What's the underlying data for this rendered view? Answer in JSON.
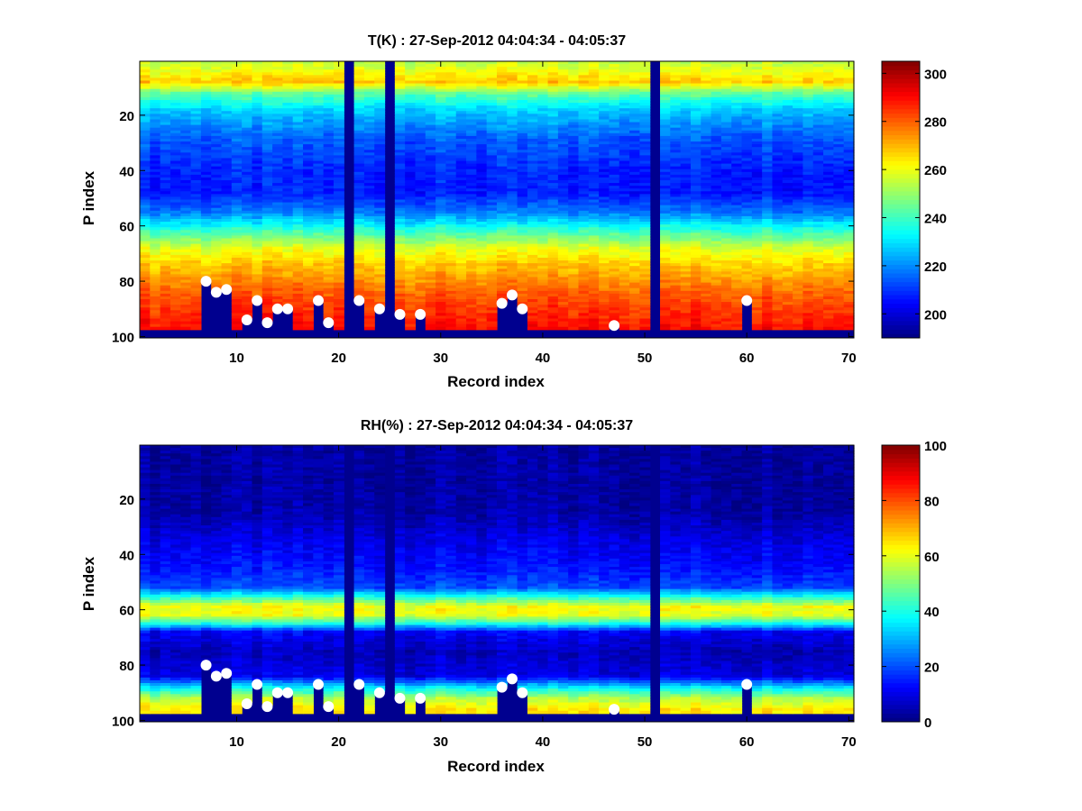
{
  "chart_data": [
    {
      "type": "heatmap",
      "title": "T(K) : 27-Sep-2012 04:04:34 - 04:05:37",
      "xlabel": "Record index",
      "ylabel": "P index",
      "xlim": [
        0.5,
        70.5
      ],
      "ylim": [
        0.5,
        100.5
      ],
      "y_reversed": true,
      "xticks": [
        10,
        20,
        30,
        40,
        50,
        60,
        70
      ],
      "yticks": [
        20,
        40,
        60,
        80,
        100
      ],
      "colorbar": {
        "min": 190,
        "max": 305,
        "ticks": [
          200,
          220,
          240,
          260,
          280,
          300
        ],
        "colormap": "jet"
      },
      "missing_records": [
        21,
        25,
        51
      ],
      "profile": [
        {
          "p": 1,
          "value": 255
        },
        {
          "p": 5,
          "value": 262
        },
        {
          "p": 8,
          "value": 268
        },
        {
          "p": 12,
          "value": 245
        },
        {
          "p": 18,
          "value": 228
        },
        {
          "p": 28,
          "value": 215
        },
        {
          "p": 40,
          "value": 208
        },
        {
          "p": 48,
          "value": 207
        },
        {
          "p": 55,
          "value": 218
        },
        {
          "p": 62,
          "value": 240
        },
        {
          "p": 68,
          "value": 258
        },
        {
          "p": 74,
          "value": 268
        },
        {
          "p": 80,
          "value": 275
        },
        {
          "p": 86,
          "value": 282
        },
        {
          "p": 92,
          "value": 286
        },
        {
          "p": 97,
          "value": 290
        }
      ],
      "surface_points": [
        {
          "record": 7,
          "p": 80
        },
        {
          "record": 8,
          "p": 84
        },
        {
          "record": 9,
          "p": 83
        },
        {
          "record": 11,
          "p": 94
        },
        {
          "record": 12,
          "p": 87
        },
        {
          "record": 13,
          "p": 95
        },
        {
          "record": 14,
          "p": 90
        },
        {
          "record": 15,
          "p": 90
        },
        {
          "record": 18,
          "p": 87
        },
        {
          "record": 19,
          "p": 95
        },
        {
          "record": 22,
          "p": 87
        },
        {
          "record": 24,
          "p": 90
        },
        {
          "record": 26,
          "p": 92
        },
        {
          "record": 28,
          "p": 92
        },
        {
          "record": 36,
          "p": 88
        },
        {
          "record": 37,
          "p": 85
        },
        {
          "record": 38,
          "p": 90
        },
        {
          "record": 47,
          "p": 96
        },
        {
          "record": 60,
          "p": 87
        }
      ]
    },
    {
      "type": "heatmap",
      "title": "RH(%) : 27-Sep-2012 04:04:34 - 04:05:37",
      "xlabel": "Record index",
      "ylabel": "P index",
      "xlim": [
        0.5,
        70.5
      ],
      "ylim": [
        0.5,
        100.5
      ],
      "y_reversed": true,
      "xticks": [
        10,
        20,
        30,
        40,
        50,
        60,
        70
      ],
      "yticks": [
        20,
        40,
        60,
        80,
        100
      ],
      "colorbar": {
        "min": 0,
        "max": 100,
        "ticks": [
          0,
          20,
          40,
          60,
          80,
          100
        ],
        "colormap": "jet"
      },
      "missing_records": [
        21,
        25,
        51
      ],
      "profile": [
        {
          "p": 1,
          "value": 3
        },
        {
          "p": 25,
          "value": 4
        },
        {
          "p": 35,
          "value": 10
        },
        {
          "p": 45,
          "value": 14
        },
        {
          "p": 52,
          "value": 20
        },
        {
          "p": 56,
          "value": 45
        },
        {
          "p": 59,
          "value": 62
        },
        {
          "p": 62,
          "value": 60
        },
        {
          "p": 65,
          "value": 40
        },
        {
          "p": 68,
          "value": 12
        },
        {
          "p": 75,
          "value": 6
        },
        {
          "p": 84,
          "value": 10
        },
        {
          "p": 88,
          "value": 35
        },
        {
          "p": 92,
          "value": 55
        },
        {
          "p": 96,
          "value": 65
        }
      ],
      "surface_points": [
        {
          "record": 7,
          "p": 80
        },
        {
          "record": 8,
          "p": 84
        },
        {
          "record": 9,
          "p": 83
        },
        {
          "record": 11,
          "p": 94
        },
        {
          "record": 12,
          "p": 87
        },
        {
          "record": 13,
          "p": 95
        },
        {
          "record": 14,
          "p": 90
        },
        {
          "record": 15,
          "p": 90
        },
        {
          "record": 18,
          "p": 87
        },
        {
          "record": 19,
          "p": 95
        },
        {
          "record": 22,
          "p": 87
        },
        {
          "record": 24,
          "p": 90
        },
        {
          "record": 26,
          "p": 92
        },
        {
          "record": 28,
          "p": 92
        },
        {
          "record": 36,
          "p": 88
        },
        {
          "record": 37,
          "p": 85
        },
        {
          "record": 38,
          "p": 90
        },
        {
          "record": 47,
          "p": 96
        },
        {
          "record": 60,
          "p": 87
        }
      ]
    }
  ],
  "colors": {
    "background": "#ffffff",
    "missing": "#00008f",
    "marker": "#ffffff"
  }
}
